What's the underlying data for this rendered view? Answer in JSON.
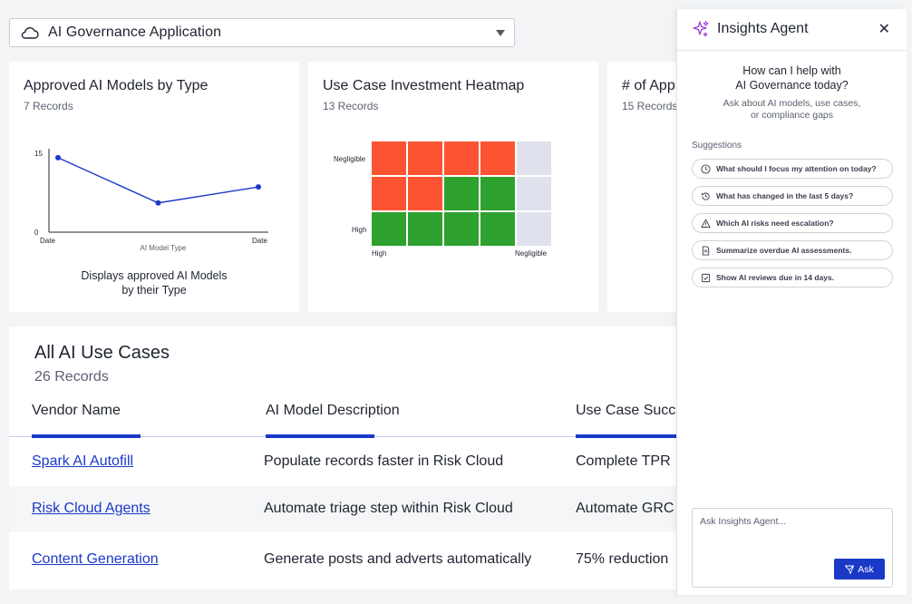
{
  "app_selector": {
    "title": "AI Governance Application"
  },
  "cards": {
    "models_by_type": {
      "title": "Approved AI Models by Type",
      "records": "7 Records",
      "description_line1": "Displays approved AI Models",
      "description_line2": "by their Type"
    },
    "heatmap": {
      "title": "Use Case Investment Heatmap",
      "records": "13 Records",
      "y_top_label": "Negligible",
      "y_bottom_label": "High",
      "x_left_label": "High",
      "x_right_label": "Negligible",
      "colors": {
        "red": "#fc5433",
        "green": "#2ea12e",
        "empty": "#dfe1ec"
      },
      "cells": [
        [
          "red",
          "red",
          "red",
          "red",
          "empty"
        ],
        [
          "red",
          "red",
          "green",
          "green",
          "empty"
        ],
        [
          "green",
          "green",
          "green",
          "green",
          "empty"
        ]
      ]
    },
    "third": {
      "title": "# of App",
      "records": "15 Records"
    }
  },
  "chart_data": {
    "type": "line",
    "title": "Approved AI Models by Type",
    "xlabel": "AI Model Type",
    "ylabel": "",
    "x_tick_labels": [
      "Date",
      "Date"
    ],
    "y_ticks": [
      0,
      15
    ],
    "ylim": [
      0,
      15
    ],
    "x": [
      0,
      1,
      2
    ],
    "series": [
      {
        "values": [
          14,
          5.5,
          8.5
        ],
        "color": "#1b39c7"
      }
    ]
  },
  "table": {
    "title": "All AI Use Cases",
    "records": "26 Records",
    "columns": [
      "Vendor Name",
      "AI Model Description",
      "Use Case Succ"
    ],
    "rows": [
      {
        "vendor": "Spark AI Autofill",
        "description": "Populate records faster in Risk Cloud",
        "success": "Complete TPR"
      },
      {
        "vendor": "Risk Cloud Agents",
        "description": "Automate triage step within Risk Cloud",
        "success": "Automate GRC"
      },
      {
        "vendor": "Content Generation",
        "description": "Generate posts and adverts automatically",
        "success": "75% reduction"
      }
    ]
  },
  "insights": {
    "title": "Insights Agent",
    "help_line1": "How can I help with",
    "help_line2": "AI Governance today?",
    "help_sub_line1": "Ask about AI models, use cases,",
    "help_sub_line2": "or compliance gaps",
    "suggestions_label": "Suggestions",
    "suggestions": [
      {
        "icon": "clock-icon",
        "text": "What should I focus my attention on today?"
      },
      {
        "icon": "history-icon",
        "text": "What has changed in the last 5 days?"
      },
      {
        "icon": "warning-icon",
        "text": "Which AI risks need escalation?"
      },
      {
        "icon": "document-icon",
        "text": "Summarize overdue AI assessments."
      },
      {
        "icon": "checkbox-icon",
        "text": "Show AI reviews due in 14 days."
      }
    ],
    "ask_placeholder": "Ask Insights Agent...",
    "ask_button": "Ask",
    "accent": "#1b39c7",
    "sparkle_color": "#9b3fd4"
  }
}
